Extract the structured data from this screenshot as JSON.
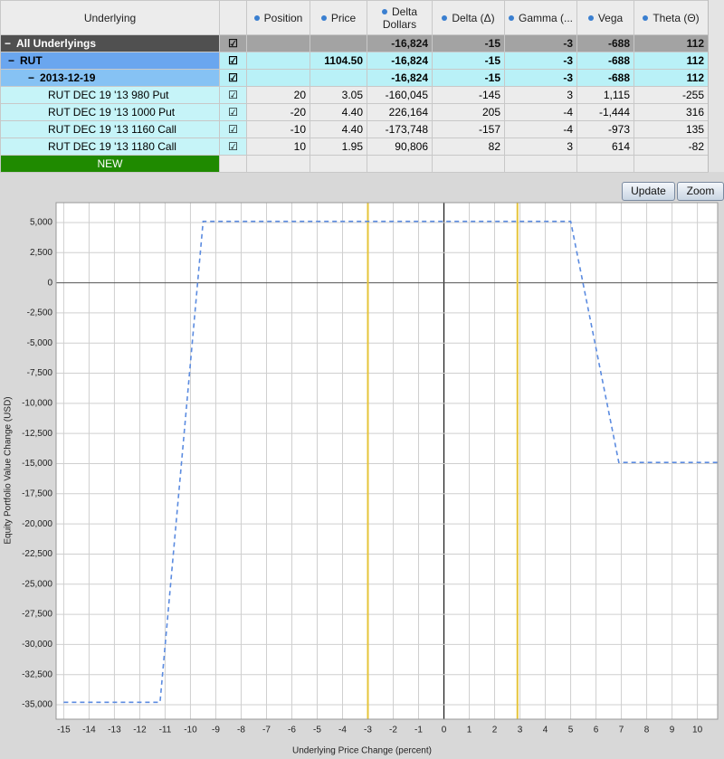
{
  "table": {
    "columns": [
      "Underlying",
      "Position",
      "Price",
      "Delta Dollars",
      "Delta (Δ)",
      "Gamma (...",
      "Vega",
      "Theta (Θ)"
    ],
    "rows": [
      {
        "label": "All Underlyings",
        "cells": [
          null,
          null,
          "-16,824",
          "-15",
          "-3",
          "-688",
          "112"
        ]
      },
      {
        "label": "RUT",
        "cells": [
          null,
          "1104.50",
          "-16,824",
          "-15",
          "-3",
          "-688",
          "112"
        ]
      },
      {
        "label": "2013-12-19",
        "cells": [
          null,
          null,
          "-16,824",
          "-15",
          "-3",
          "-688",
          "112"
        ]
      },
      {
        "label": "RUT DEC 19 '13 980 Put",
        "cells": [
          "20",
          "3.05",
          "-160,045",
          "-145",
          "3",
          "1,115",
          "-255"
        ]
      },
      {
        "label": "RUT DEC 19 '13 1000 Put",
        "cells": [
          "-20",
          "4.40",
          "226,164",
          "205",
          "-4",
          "-1,444",
          "316"
        ]
      },
      {
        "label": "RUT DEC 19 '13 1160 Call",
        "cells": [
          "-10",
          "4.40",
          "-173,748",
          "-157",
          "-4",
          "-973",
          "135"
        ]
      },
      {
        "label": "RUT DEC 19 '13 1180 Call",
        "cells": [
          "10",
          "1.95",
          "90,806",
          "82",
          "3",
          "614",
          "-82"
        ]
      },
      {
        "label": "NEW",
        "cells": [
          null,
          null,
          null,
          null,
          null,
          null,
          null
        ]
      }
    ]
  },
  "buttons": [
    "Update",
    "Zoom"
  ],
  "chart_data": {
    "type": "line",
    "x_label": "Underlying Price Change (percent)",
    "y_label": "Equity Portfolio Value Change (USD)",
    "x": [
      -15,
      -11.2,
      -9.5,
      5,
      6.9,
      10.8
    ],
    "series": [
      {
        "color": "#5b8be0",
        "values": [
          -34800,
          -34800,
          5100,
          5100,
          -14900,
          -14900
        ]
      }
    ],
    "xlim": [
      -15.3,
      10.8
    ],
    "ylim": [
      -36200,
      6650
    ],
    "xticks": [
      -15,
      -14,
      -13,
      -12,
      -11,
      -10,
      -9,
      -8,
      -7,
      -6,
      -5,
      -4,
      -3,
      -2,
      -1,
      0,
      1,
      2,
      3,
      4,
      5,
      6,
      7,
      8,
      9,
      10
    ],
    "yticks": [
      {
        "value": 5000,
        "label": "5,000"
      },
      {
        "value": 2500,
        "label": "2,500"
      },
      0,
      {
        "value": -2500,
        "label": "-2,500"
      },
      {
        "value": -5000,
        "label": "-5,000"
      },
      {
        "value": -7500,
        "label": "-7,500"
      },
      {
        "value": -10000,
        "label": "-10,000"
      },
      {
        "value": -12500,
        "label": "-12,500"
      },
      {
        "value": -15000,
        "label": "-15,000"
      },
      {
        "value": -17500,
        "label": "-17,500"
      },
      {
        "value": -20000,
        "label": "-20,000"
      },
      {
        "value": -22500,
        "label": "-22,500"
      },
      {
        "value": -25000,
        "label": "-25,000"
      },
      {
        "value": -27500,
        "label": "-27,500"
      },
      {
        "value": -30000,
        "label": "-30,000"
      },
      {
        "value": -32500,
        "label": "-32,500"
      },
      {
        "value": -35000,
        "label": "-35,000"
      }
    ],
    "grid": true,
    "markers": [
      {
        "x": -3,
        "color": "#e6c43a"
      },
      {
        "x": 2.9,
        "color": "#e6c43a"
      }
    ]
  }
}
